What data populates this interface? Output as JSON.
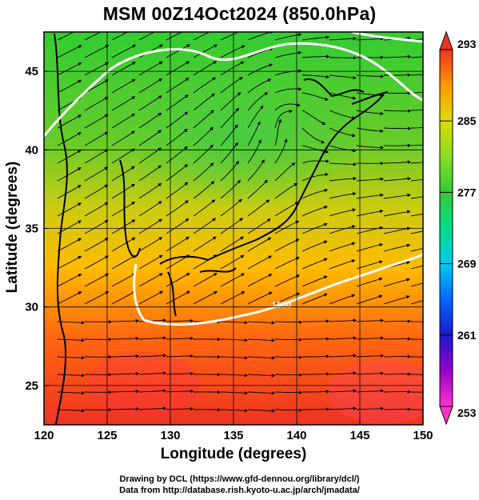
{
  "title": "MSM 00Z14Oct2024 (850.0hPa)",
  "map": {
    "xlabel": "Longitude (degrees)",
    "ylabel": "Latitude  (degrees)",
    "lon_range": [
      120,
      150
    ],
    "lat_range": [
      22.5,
      47.5
    ],
    "lon_ticks": [
      120,
      125,
      130,
      135,
      140,
      145,
      150
    ],
    "lat_ticks": [
      25,
      30,
      35,
      40,
      45
    ],
    "grid": true,
    "field": "temperature",
    "contour_label": "1500",
    "contour_color": "#ffffff",
    "streamline_color": "#000000"
  },
  "colorbar": {
    "ticks": [
      293,
      285,
      277,
      269,
      261,
      253
    ],
    "min": 253,
    "max": 293,
    "stops": [
      {
        "value": 253,
        "color": "#ff33cc"
      },
      {
        "value": 257,
        "color": "#9900cc"
      },
      {
        "value": 261,
        "color": "#1a1acc"
      },
      {
        "value": 265,
        "color": "#0066ff"
      },
      {
        "value": 269,
        "color": "#00ccee"
      },
      {
        "value": 273,
        "color": "#00dd88"
      },
      {
        "value": 277,
        "color": "#33cc33"
      },
      {
        "value": 281,
        "color": "#88dd22"
      },
      {
        "value": 285,
        "color": "#dddd00"
      },
      {
        "value": 289,
        "color": "#ff9900"
      },
      {
        "value": 293,
        "color": "#ee3322"
      }
    ]
  },
  "credits": {
    "line1": "Drawing by DCL (https://www.gfd-dennou.org/library/dcl/)",
    "line2": "Data from http://database.rish.kyoto-u.ac.jp/arch/jmadata/"
  }
}
